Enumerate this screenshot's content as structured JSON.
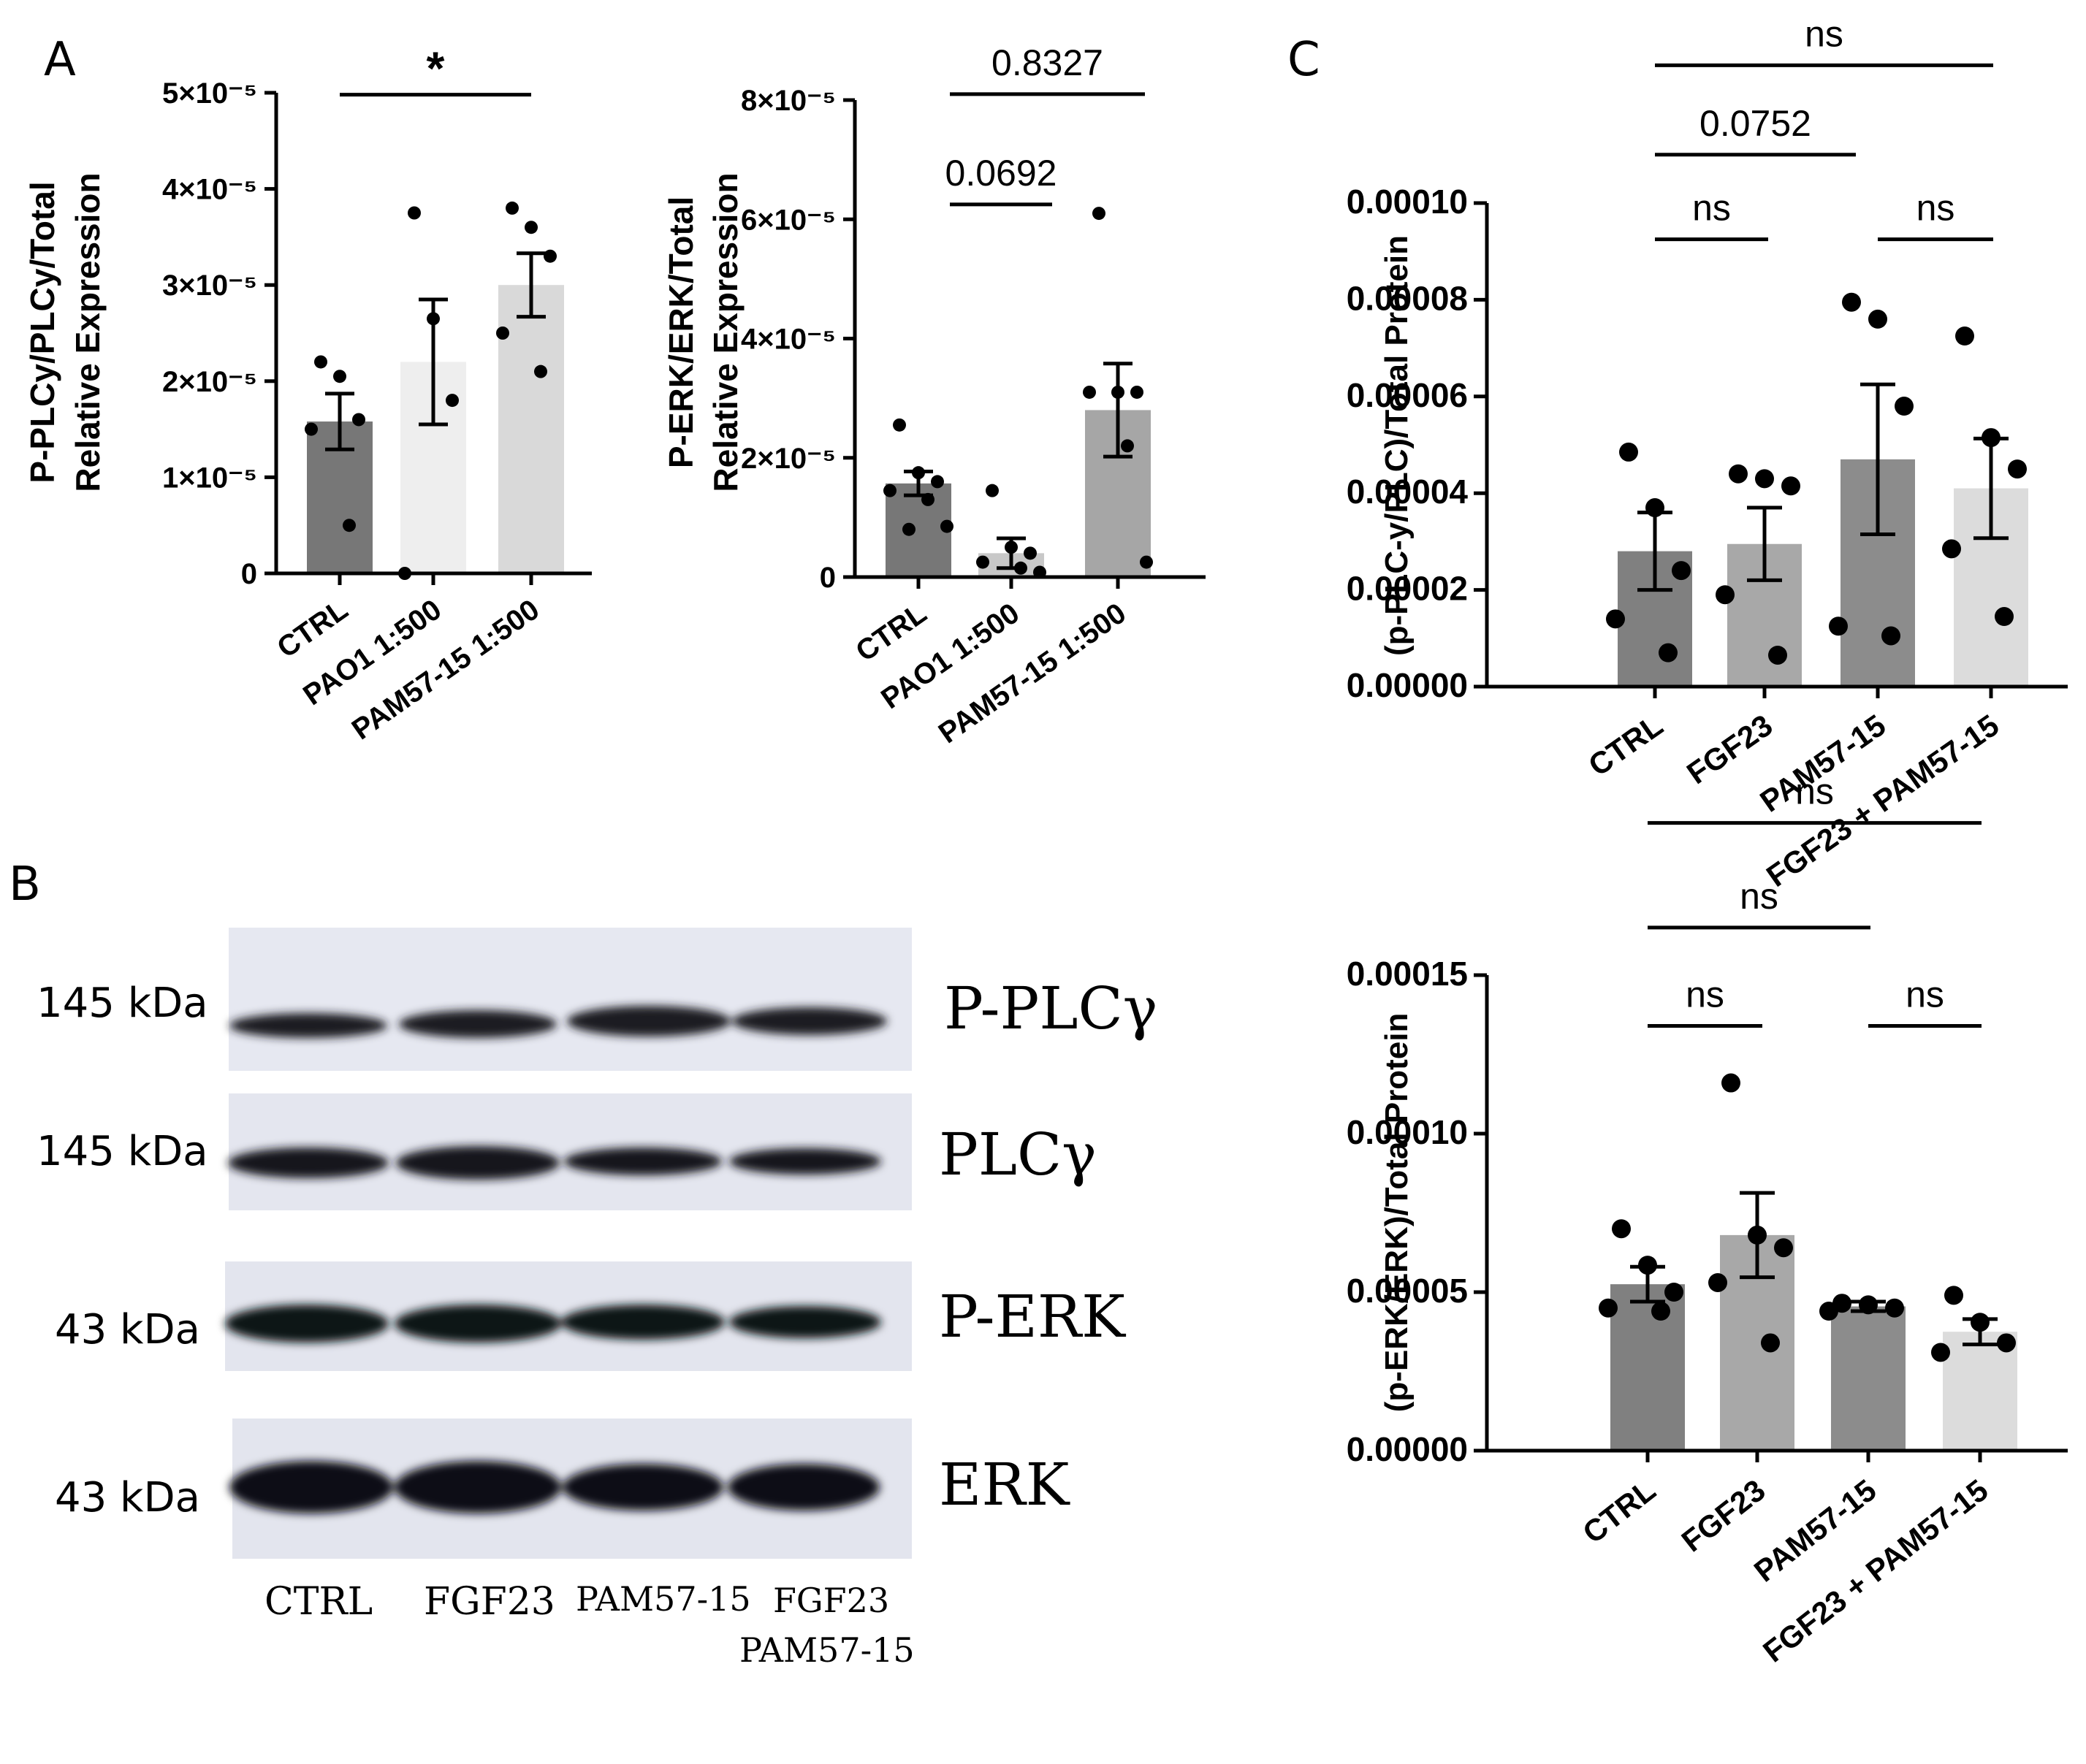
{
  "panels": {
    "a": "A",
    "b": "B",
    "c": "C"
  },
  "chart_data": [
    {
      "id": "a1",
      "type": "bar",
      "ylabel_lines": [
        "P-PLCy/PLCy/Total",
        "Relative Expression"
      ],
      "categories": [
        "CTRL",
        "PAO1 1:500",
        "PAM57-15 1:500"
      ],
      "ylim": [
        0,
        5e-05
      ],
      "ytick_labels": [
        "0",
        "1×10⁻⁵",
        "2×10⁻⁵",
        "3×10⁻⁵",
        "4×10⁻⁵",
        "5×10⁻⁵"
      ],
      "ytick_values": [
        0,
        1e-05,
        2e-05,
        3e-05,
        4e-05,
        5e-05
      ],
      "means": [
        1.58e-05,
        2.2e-05,
        3e-05
      ],
      "sem": [
        2.9e-06,
        6.5e-06,
        3.3e-06
      ],
      "points": [
        [
          2.2e-05,
          2.05e-05,
          1.6e-05,
          1.5e-05,
          5e-06
        ],
        [
          3.75e-05,
          2.65e-05,
          1.8e-05,
          0.0
        ],
        [
          3.8e-05,
          3.6e-05,
          3.3e-05,
          2.5e-05,
          2.1e-05
        ]
      ],
      "colors": [
        "#777777",
        "#eeeeee",
        "#d9d9d9"
      ],
      "comparisons": [
        {
          "from": 0,
          "to": 2,
          "label": "*",
          "y": 4.98e-05
        }
      ]
    },
    {
      "id": "a2",
      "type": "bar",
      "ylabel_lines": [
        "P-ERK/ERK/Total",
        "Relative Expression"
      ],
      "categories": [
        "CTRL",
        "PAO1 1:500",
        "PAM57-15 1:500"
      ],
      "ylim": [
        0,
        8e-05
      ],
      "ytick_labels": [
        "0",
        "2×10⁻⁵",
        "4×10⁻⁵",
        "6×10⁻⁵",
        "8×10⁻⁵"
      ],
      "ytick_values": [
        0,
        2e-05,
        4e-05,
        6e-05,
        8e-05
      ],
      "means": [
        1.57e-05,
        4e-06,
        2.8e-05
      ],
      "sem": [
        2e-06,
        2.5e-06,
        7.8e-06
      ],
      "points": [
        [
          2.55e-05,
          1.75e-05,
          1.6e-05,
          1.45e-05,
          1.3e-05,
          8.5e-06,
          8e-06
        ],
        [
          1.45e-05,
          5e-06,
          4e-06,
          2.5e-06,
          1.5e-06,
          8e-07
        ],
        [
          6.1e-05,
          3.1e-05,
          3.1e-05,
          3.1e-05,
          2.2e-05,
          2.5e-06
        ]
      ],
      "colors": [
        "#777777",
        "#c8c8c8",
        "#a6a6a6"
      ],
      "comparisons": [
        {
          "from": 0,
          "to": 1,
          "label": "0.0692",
          "y": 6.25e-05
        },
        {
          "from": 0,
          "to": 2,
          "label": "0.8327",
          "y": 8.1e-05
        }
      ]
    },
    {
      "id": "c1",
      "type": "bar",
      "ylabel": "(p-PLC-y/PLC)/Total Protein",
      "categories": [
        "CTRL",
        "FGF23",
        "PAM57-15",
        "FGF23 + PAM57-15"
      ],
      "ylim": [
        0,
        0.0001
      ],
      "ytick_labels": [
        "0.00000",
        "0.00002",
        "0.00004",
        "0.00006",
        "0.00008",
        "0.00010"
      ],
      "ytick_values": [
        0,
        2e-05,
        4e-05,
        6e-05,
        8e-05,
        0.0001
      ],
      "means": [
        2.8e-05,
        2.95e-05,
        4.7e-05,
        4.1e-05
      ],
      "sem": [
        8e-06,
        7.5e-06,
        1.55e-05,
        1.03e-05
      ],
      "points": [
        [
          4.85e-05,
          3.7e-05,
          2.4e-05,
          1.4e-05,
          7e-06
        ],
        [
          4.4e-05,
          4.3e-05,
          4.15e-05,
          1.9e-05,
          6.5e-06
        ],
        [
          7.95e-05,
          7.6e-05,
          5.8e-05,
          1.25e-05,
          1.05e-05
        ],
        [
          7.25e-05,
          5.15e-05,
          4.5e-05,
          2.85e-05,
          1.45e-05
        ]
      ],
      "colors": [
        "#808080",
        "#a8a8a8",
        "#8c8c8c",
        "#dcdcdc"
      ],
      "comparisons": [
        {
          "from": 0,
          "to": 1,
          "label": "ns",
          "y": 9.25e-05
        },
        {
          "from": 2,
          "to": 3,
          "label": "ns",
          "y": 9.25e-05
        },
        {
          "from": 0,
          "to": 2,
          "label": "0.0752",
          "y": 0.00011
        },
        {
          "from": 0,
          "to": 3,
          "label": "ns",
          "y": 0.0001285
        }
      ]
    },
    {
      "id": "c2",
      "type": "bar",
      "ylabel": "(p-ERK/ERK)/Total Protein",
      "categories": [
        "CTRL",
        "FGF23",
        "PAM57-15",
        "FGF23 + PAM57-15"
      ],
      "ylim": [
        0,
        0.00015
      ],
      "ytick_labels": [
        "0.00000",
        "0.00005",
        "0.00010",
        "0.00015"
      ],
      "ytick_values": [
        0,
        5e-05,
        0.0001,
        0.00015
      ],
      "means": [
        5.25e-05,
        6.8e-05,
        4.55e-05,
        3.75e-05
      ],
      "sem": [
        5.5e-06,
        1.33e-05,
        1.5e-06,
        4e-06
      ],
      "points": [
        [
          7e-05,
          5.85e-05,
          5e-05,
          4.5e-05,
          4.4e-05
        ],
        [
          0.000116,
          6.8e-05,
          6.4e-05,
          5.3e-05,
          3.4e-05
        ],
        [
          4.65e-05,
          4.6e-05,
          4.5e-05,
          4.4e-05
        ],
        [
          4.9e-05,
          4.05e-05,
          3.4e-05,
          3.1e-05
        ]
      ],
      "colors": [
        "#808080",
        "#a8a8a8",
        "#8c8c8c",
        "#dcdcdc"
      ],
      "comparisons": [
        {
          "from": 0,
          "to": 1,
          "label": "ns",
          "y": 0.000134
        },
        {
          "from": 2,
          "to": 3,
          "label": "ns",
          "y": 0.000134
        },
        {
          "from": 0,
          "to": 2,
          "label": "ns",
          "y": 0.000165
        },
        {
          "from": 0,
          "to": 3,
          "label": "ns",
          "y": 0.000198
        }
      ]
    }
  ],
  "blot": {
    "rows": [
      {
        "kda": "145 kDa",
        "protein": "P-PLCγ"
      },
      {
        "kda": "145 kDa",
        "protein": "PLCγ"
      },
      {
        "kda": "43 kDa",
        "protein": "P-ERK"
      },
      {
        "kda": "43 kDa",
        "protein": "ERK"
      }
    ],
    "lanes": [
      "CTRL",
      "FGF23",
      "PAM57-15",
      "FGF23",
      "PAM57-15"
    ]
  }
}
